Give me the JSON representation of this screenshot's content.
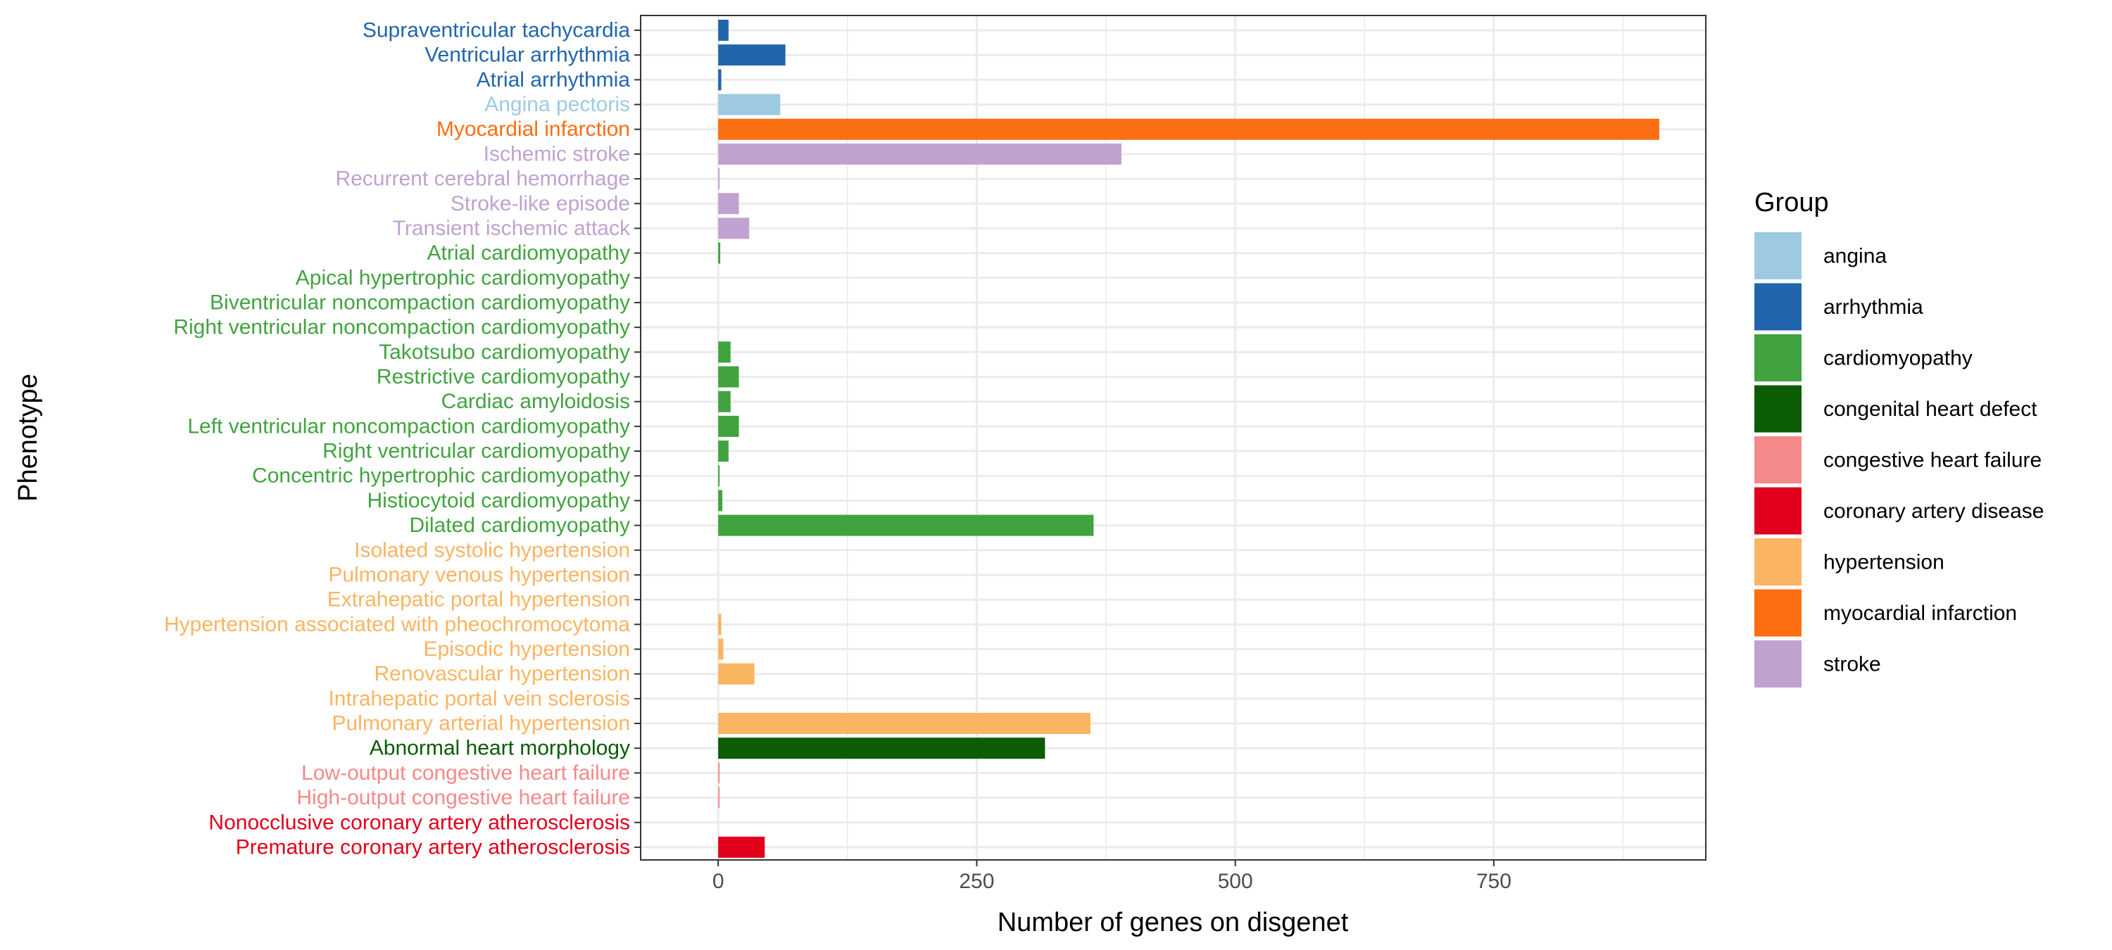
{
  "chart_data": {
    "type": "bar",
    "orientation": "horizontal",
    "xlabel": "Number of genes on disgenet",
    "ylabel": "Phenotype",
    "xlim": [
      -75,
      955
    ],
    "xticks": [
      0,
      250,
      500,
      750
    ],
    "grid": true,
    "legend": {
      "title": "Group",
      "placement": "right",
      "entries": [
        {
          "name": "angina",
          "color": "#9ECAE1"
        },
        {
          "name": "arrhythmia",
          "color": "#2166AC"
        },
        {
          "name": "cardiomyopathy",
          "color": "#41A33F"
        },
        {
          "name": "congenital heart defect",
          "color": "#0B5C05"
        },
        {
          "name": "congestive heart failure",
          "color": "#F4898A"
        },
        {
          "name": "coronary artery disease",
          "color": "#E0001B"
        },
        {
          "name": "hypertension",
          "color": "#FBB462"
        },
        {
          "name": "myocardial infarction",
          "color": "#FB6E12"
        },
        {
          "name": "stroke",
          "color": "#C0A2D1"
        }
      ]
    },
    "bars": [
      {
        "label": "Supraventricular tachycardia",
        "value": 10,
        "group": "arrhythmia"
      },
      {
        "label": "Ventricular arrhythmia",
        "value": 65,
        "group": "arrhythmia"
      },
      {
        "label": "Atrial arrhythmia",
        "value": 3,
        "group": "arrhythmia"
      },
      {
        "label": "Angina pectoris",
        "value": 60,
        "group": "angina"
      },
      {
        "label": "Myocardial infarction",
        "value": 910,
        "group": "myocardial infarction"
      },
      {
        "label": "Ischemic stroke",
        "value": 390,
        "group": "stroke"
      },
      {
        "label": "Recurrent cerebral hemorrhage",
        "value": 1,
        "group": "stroke"
      },
      {
        "label": "Stroke-like episode",
        "value": 20,
        "group": "stroke"
      },
      {
        "label": "Transient ischemic attack",
        "value": 30,
        "group": "stroke"
      },
      {
        "label": "Atrial cardiomyopathy",
        "value": 2,
        "group": "cardiomyopathy"
      },
      {
        "label": "Apical hypertrophic cardiomyopathy",
        "value": 0,
        "group": "cardiomyopathy"
      },
      {
        "label": "Biventricular noncompaction cardiomyopathy",
        "value": 0,
        "group": "cardiomyopathy"
      },
      {
        "label": "Right ventricular noncompaction cardiomyopathy",
        "value": 0,
        "group": "cardiomyopathy"
      },
      {
        "label": "Takotsubo cardiomyopathy",
        "value": 12,
        "group": "cardiomyopathy"
      },
      {
        "label": "Restrictive cardiomyopathy",
        "value": 20,
        "group": "cardiomyopathy"
      },
      {
        "label": "Cardiac amyloidosis",
        "value": 12,
        "group": "cardiomyopathy"
      },
      {
        "label": "Left ventricular noncompaction cardiomyopathy",
        "value": 20,
        "group": "cardiomyopathy"
      },
      {
        "label": "Right ventricular cardiomyopathy",
        "value": 10,
        "group": "cardiomyopathy"
      },
      {
        "label": "Concentric hypertrophic cardiomyopathy",
        "value": 1,
        "group": "cardiomyopathy"
      },
      {
        "label": "Histiocytoid cardiomyopathy",
        "value": 4,
        "group": "cardiomyopathy"
      },
      {
        "label": "Dilated cardiomyopathy",
        "value": 363,
        "group": "cardiomyopathy"
      },
      {
        "label": "Isolated systolic hypertension",
        "value": 0,
        "group": "hypertension"
      },
      {
        "label": "Pulmonary venous hypertension",
        "value": 0,
        "group": "hypertension"
      },
      {
        "label": "Extrahepatic portal hypertension",
        "value": 0,
        "group": "hypertension"
      },
      {
        "label": "Hypertension associated with pheochromocytoma",
        "value": 3,
        "group": "hypertension"
      },
      {
        "label": "Episodic hypertension",
        "value": 5,
        "group": "hypertension"
      },
      {
        "label": "Renovascular hypertension",
        "value": 35,
        "group": "hypertension"
      },
      {
        "label": "Intrahepatic portal vein sclerosis",
        "value": 0,
        "group": "hypertension"
      },
      {
        "label": "Pulmonary arterial hypertension",
        "value": 360,
        "group": "hypertension"
      },
      {
        "label": "Abnormal heart morphology",
        "value": 316,
        "group": "congenital heart defect"
      },
      {
        "label": "Low-output congestive heart failure",
        "value": 1,
        "group": "congestive heart failure"
      },
      {
        "label": "High-output congestive heart failure",
        "value": 1,
        "group": "congestive heart failure"
      },
      {
        "label": "Nonocclusive coronary artery atherosclerosis",
        "value": 0,
        "group": "coronary artery disease"
      },
      {
        "label": "Premature coronary artery atherosclerosis",
        "value": 45,
        "group": "coronary artery disease"
      }
    ]
  }
}
